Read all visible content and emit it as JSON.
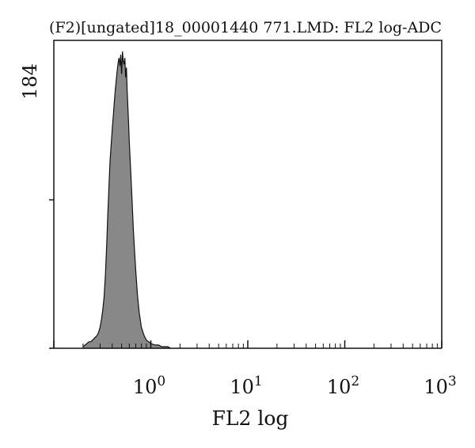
{
  "chart_data": {
    "type": "area",
    "title": "(F2)[ungated]18_00001440 771.LMD: FL2 log-ADC",
    "xlabel": "FL2 log",
    "ylabel": "",
    "x_scale": "log",
    "xlim": [
      0.1,
      1000
    ],
    "ylim": [
      0,
      184
    ],
    "y_max_label": "184",
    "grid": false,
    "legend": "none",
    "fill_color": "#888888",
    "line_color": "#111111",
    "x_ticks": [
      {
        "value": 1,
        "base": "10",
        "exp": "0"
      },
      {
        "value": 10,
        "base": "10",
        "exp": "1"
      },
      {
        "value": 100,
        "base": "10",
        "exp": "2"
      },
      {
        "value": 1000,
        "base": "10",
        "exp": "3"
      }
    ],
    "series": [
      {
        "x": [
          0.2,
          0.21,
          0.22,
          0.23,
          0.24,
          0.25,
          0.26,
          0.27,
          0.28,
          0.29,
          0.3,
          0.31,
          0.32,
          0.33,
          0.34,
          0.35,
          0.36,
          0.37,
          0.38,
          0.39,
          0.4,
          0.41,
          0.42,
          0.43,
          0.44,
          0.45,
          0.46,
          0.47,
          0.48,
          0.49,
          0.5,
          0.51,
          0.52,
          0.53,
          0.54,
          0.55,
          0.56,
          0.57,
          0.58,
          0.59,
          0.6,
          0.62,
          0.64,
          0.66,
          0.68,
          0.7,
          0.73,
          0.76,
          0.8,
          0.85,
          0.9,
          0.95,
          1.0,
          1.1,
          1.2,
          1.3,
          1.4,
          1.5,
          1.6
        ],
        "values": [
          1,
          2,
          3,
          4,
          4,
          5,
          6,
          7,
          8,
          10,
          13,
          18,
          24,
          32,
          45,
          62,
          82,
          100,
          116,
          126,
          136,
          144,
          152,
          160,
          166,
          172,
          177,
          180,
          175,
          182,
          170,
          184,
          178,
          176,
          180,
          168,
          174,
          160,
          150,
          140,
          128,
          110,
          92,
          74,
          60,
          48,
          32,
          22,
          13,
          8,
          5,
          4,
          3,
          2,
          2,
          1,
          1,
          1,
          0
        ]
      }
    ]
  }
}
